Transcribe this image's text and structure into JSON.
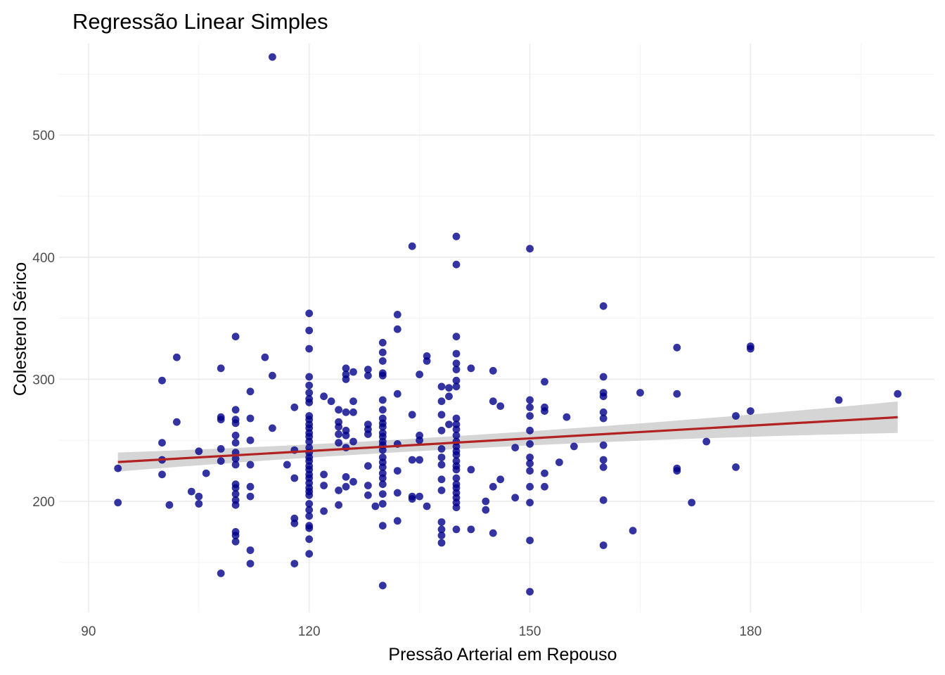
{
  "chart_data": {
    "type": "scatter",
    "title": "Regressão Linear Simples",
    "xlabel": "Pressão Arterial em Repouso",
    "ylabel": "Colesterol Sérico",
    "xlim": [
      86,
      205
    ],
    "ylim": [
      109,
      575
    ],
    "xticks": [
      90,
      120,
      150,
      180
    ],
    "yticks": [
      200,
      300,
      400,
      500
    ],
    "grid": true,
    "legend": "none",
    "colors": {
      "points": "#00008B",
      "line": "#B22222",
      "band": "#BEBEBE"
    },
    "points": [
      [
        94,
        227
      ],
      [
        94,
        199
      ],
      [
        100,
        299
      ],
      [
        100,
        248
      ],
      [
        100,
        234
      ],
      [
        100,
        222
      ],
      [
        101,
        197
      ],
      [
        102,
        318
      ],
      [
        102,
        265
      ],
      [
        104,
        208
      ],
      [
        105,
        241
      ],
      [
        105,
        204
      ],
      [
        105,
        198
      ],
      [
        106,
        223
      ],
      [
        108,
        309
      ],
      [
        108,
        269
      ],
      [
        108,
        267
      ],
      [
        108,
        243
      ],
      [
        108,
        233
      ],
      [
        108,
        141
      ],
      [
        110,
        335
      ],
      [
        110,
        275
      ],
      [
        110,
        267
      ],
      [
        110,
        264
      ],
      [
        110,
        254
      ],
      [
        110,
        248
      ],
      [
        110,
        240
      ],
      [
        110,
        235
      ],
      [
        110,
        230
      ],
      [
        110,
        214
      ],
      [
        110,
        211
      ],
      [
        110,
        206
      ],
      [
        110,
        201
      ],
      [
        110,
        197
      ],
      [
        110,
        175
      ],
      [
        110,
        172
      ],
      [
        110,
        167
      ],
      [
        112,
        290
      ],
      [
        112,
        268
      ],
      [
        112,
        250
      ],
      [
        112,
        230
      ],
      [
        112,
        212
      ],
      [
        112,
        204
      ],
      [
        112,
        160
      ],
      [
        112,
        149
      ],
      [
        114,
        318
      ],
      [
        115,
        564
      ],
      [
        115,
        303
      ],
      [
        115,
        260
      ],
      [
        117,
        230
      ],
      [
        118,
        277
      ],
      [
        118,
        242
      ],
      [
        118,
        219
      ],
      [
        118,
        186
      ],
      [
        118,
        182
      ],
      [
        118,
        149
      ],
      [
        120,
        354
      ],
      [
        120,
        340
      ],
      [
        120,
        325
      ],
      [
        120,
        302
      ],
      [
        120,
        295
      ],
      [
        120,
        289
      ],
      [
        120,
        284
      ],
      [
        120,
        281
      ],
      [
        120,
        270
      ],
      [
        120,
        267
      ],
      [
        120,
        263
      ],
      [
        120,
        260
      ],
      [
        120,
        256
      ],
      [
        120,
        253
      ],
      [
        120,
        249
      ],
      [
        120,
        244
      ],
      [
        120,
        240
      ],
      [
        120,
        236
      ],
      [
        120,
        233
      ],
      [
        120,
        229
      ],
      [
        120,
        226
      ],
      [
        120,
        222
      ],
      [
        120,
        219
      ],
      [
        120,
        215
      ],
      [
        120,
        211
      ],
      [
        120,
        208
      ],
      [
        120,
        205
      ],
      [
        120,
        198
      ],
      [
        120,
        193
      ],
      [
        120,
        188
      ],
      [
        120,
        180
      ],
      [
        120,
        178
      ],
      [
        120,
        169
      ],
      [
        120,
        157
      ],
      [
        122,
        286
      ],
      [
        122,
        222
      ],
      [
        122,
        213
      ],
      [
        122,
        192
      ],
      [
        123,
        282
      ],
      [
        124,
        275
      ],
      [
        124,
        265
      ],
      [
        124,
        261
      ],
      [
        124,
        255
      ],
      [
        124,
        248
      ],
      [
        124,
        209
      ],
      [
        124,
        197
      ],
      [
        125,
        309
      ],
      [
        125,
        304
      ],
      [
        125,
        300
      ],
      [
        125,
        273
      ],
      [
        125,
        258
      ],
      [
        125,
        254
      ],
      [
        125,
        244
      ],
      [
        125,
        220
      ],
      [
        125,
        212
      ],
      [
        126,
        306
      ],
      [
        126,
        282
      ],
      [
        126,
        273
      ],
      [
        126,
        249
      ],
      [
        126,
        216
      ],
      [
        128,
        308
      ],
      [
        128,
        303
      ],
      [
        128,
        263
      ],
      [
        128,
        259
      ],
      [
        128,
        255
      ],
      [
        128,
        229
      ],
      [
        128,
        213
      ],
      [
        128,
        205
      ],
      [
        129,
        196
      ],
      [
        130,
        330
      ],
      [
        130,
        322
      ],
      [
        130,
        315
      ],
      [
        130,
        305
      ],
      [
        130,
        303
      ],
      [
        130,
        283
      ],
      [
        130,
        275
      ],
      [
        130,
        268
      ],
      [
        130,
        264
      ],
      [
        130,
        261
      ],
      [
        130,
        256
      ],
      [
        130,
        253
      ],
      [
        130,
        249
      ],
      [
        130,
        246
      ],
      [
        130,
        242
      ],
      [
        130,
        236
      ],
      [
        130,
        232
      ],
      [
        130,
        228
      ],
      [
        130,
        223
      ],
      [
        130,
        219
      ],
      [
        130,
        214
      ],
      [
        130,
        206
      ],
      [
        130,
        198
      ],
      [
        130,
        180
      ],
      [
        130,
        131
      ],
      [
        132,
        353
      ],
      [
        132,
        341
      ],
      [
        132,
        288
      ],
      [
        132,
        247
      ],
      [
        132,
        225
      ],
      [
        132,
        207
      ],
      [
        132,
        184
      ],
      [
        134,
        409
      ],
      [
        134,
        271
      ],
      [
        134,
        234
      ],
      [
        134,
        204
      ],
      [
        134,
        202
      ],
      [
        135,
        304
      ],
      [
        135,
        254
      ],
      [
        135,
        250
      ],
      [
        135,
        234
      ],
      [
        135,
        204
      ],
      [
        136,
        319
      ],
      [
        136,
        315
      ],
      [
        136,
        196
      ],
      [
        138,
        294
      ],
      [
        138,
        282
      ],
      [
        138,
        271
      ],
      [
        138,
        258
      ],
      [
        138,
        243
      ],
      [
        138,
        236
      ],
      [
        138,
        230
      ],
      [
        138,
        218
      ],
      [
        138,
        209
      ],
      [
        138,
        183
      ],
      [
        138,
        177
      ],
      [
        138,
        172
      ],
      [
        138,
        166
      ],
      [
        139,
        286
      ],
      [
        139,
        263
      ],
      [
        139,
        293
      ],
      [
        140,
        417
      ],
      [
        140,
        394
      ],
      [
        140,
        335
      ],
      [
        140,
        321
      ],
      [
        140,
        313
      ],
      [
        140,
        308
      ],
      [
        140,
        299
      ],
      [
        140,
        294
      ],
      [
        140,
        268
      ],
      [
        140,
        263
      ],
      [
        140,
        259
      ],
      [
        140,
        254
      ],
      [
        140,
        249
      ],
      [
        140,
        245
      ],
      [
        140,
        241
      ],
      [
        140,
        238
      ],
      [
        140,
        233
      ],
      [
        140,
        229
      ],
      [
        140,
        226
      ],
      [
        140,
        219
      ],
      [
        140,
        214
      ],
      [
        140,
        211
      ],
      [
        140,
        207
      ],
      [
        140,
        203
      ],
      [
        140,
        199
      ],
      [
        140,
        195
      ],
      [
        140,
        177
      ],
      [
        142,
        309
      ],
      [
        142,
        226
      ],
      [
        142,
        177
      ],
      [
        144,
        200
      ],
      [
        144,
        193
      ],
      [
        145,
        307
      ],
      [
        145,
        282
      ],
      [
        145,
        212
      ],
      [
        145,
        174
      ],
      [
        146,
        278
      ],
      [
        146,
        218
      ],
      [
        148,
        244
      ],
      [
        148,
        203
      ],
      [
        150,
        407
      ],
      [
        150,
        283
      ],
      [
        150,
        277
      ],
      [
        150,
        270
      ],
      [
        150,
        258
      ],
      [
        150,
        247
      ],
      [
        150,
        236
      ],
      [
        150,
        231
      ],
      [
        150,
        225
      ],
      [
        150,
        212
      ],
      [
        150,
        199
      ],
      [
        150,
        168
      ],
      [
        150,
        126
      ],
      [
        152,
        298
      ],
      [
        152,
        277
      ],
      [
        152,
        274
      ],
      [
        152,
        223
      ],
      [
        152,
        212
      ],
      [
        154,
        232
      ],
      [
        155,
        269
      ],
      [
        156,
        245
      ],
      [
        160,
        360
      ],
      [
        160,
        302
      ],
      [
        160,
        289
      ],
      [
        160,
        286
      ],
      [
        160,
        273
      ],
      [
        160,
        268
      ],
      [
        160,
        246
      ],
      [
        160,
        234
      ],
      [
        160,
        228
      ],
      [
        160,
        201
      ],
      [
        160,
        164
      ],
      [
        164,
        176
      ],
      [
        165,
        289
      ],
      [
        170,
        326
      ],
      [
        170,
        288
      ],
      [
        170,
        227
      ],
      [
        170,
        225
      ],
      [
        172,
        199
      ],
      [
        174,
        249
      ],
      [
        178,
        270
      ],
      [
        178,
        228
      ],
      [
        180,
        327
      ],
      [
        180,
        325
      ],
      [
        180,
        274
      ],
      [
        192,
        283
      ],
      [
        200,
        288
      ]
    ],
    "regression": {
      "x_range": [
        94,
        200
      ],
      "y_fit": [
        232.2,
        268.9
      ],
      "ci_lower": [
        224.4,
        256.0
      ],
      "ci_upper": [
        240.0,
        281.8
      ]
    }
  }
}
